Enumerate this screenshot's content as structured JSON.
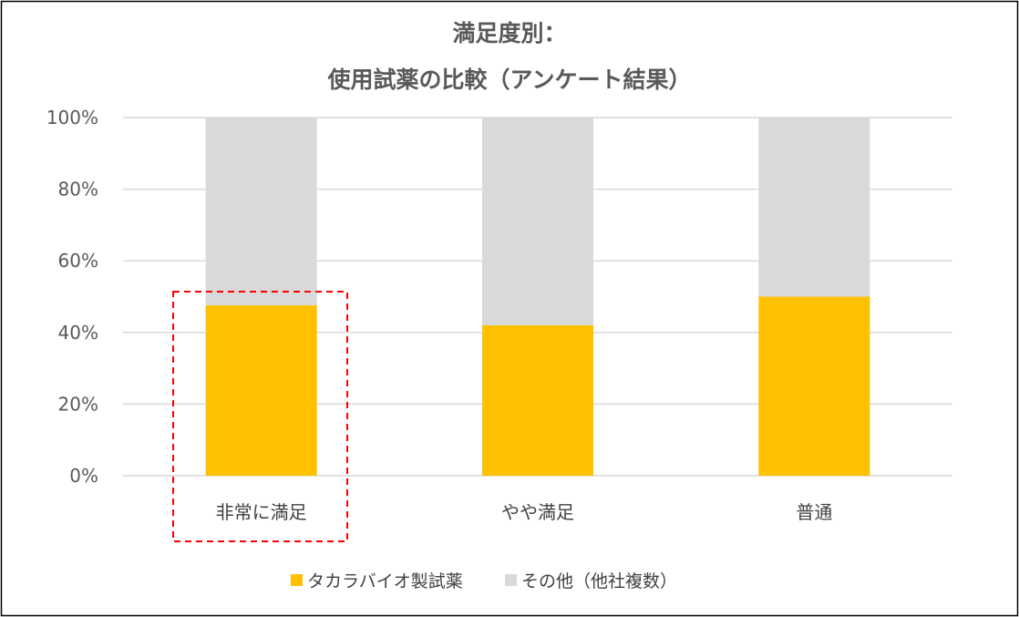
{
  "chart_data": {
    "type": "bar",
    "stacked": true,
    "percent": true,
    "title_lines": [
      "満足度別：",
      "使用試薬の比較（アンケート結果）"
    ],
    "categories": [
      "非常に満足",
      "やや満足",
      "普通"
    ],
    "series": [
      {
        "name": "タカラバイオ製試薬",
        "values": [
          47.6,
          42.0,
          50.0
        ],
        "color": "#FFC000"
      },
      {
        "name": "その他（他社複数）",
        "values": [
          52.4,
          58.0,
          50.0
        ],
        "color": "#D9D9D9"
      }
    ],
    "yticks": [
      "0%",
      "20%",
      "40%",
      "60%",
      "80%",
      "100%"
    ],
    "ylim": [
      0,
      100
    ],
    "grid": true,
    "legend": "bottom",
    "highlight": {
      "category": "非常に満足",
      "style": "red dashed box",
      "color": "#FF0000"
    }
  }
}
